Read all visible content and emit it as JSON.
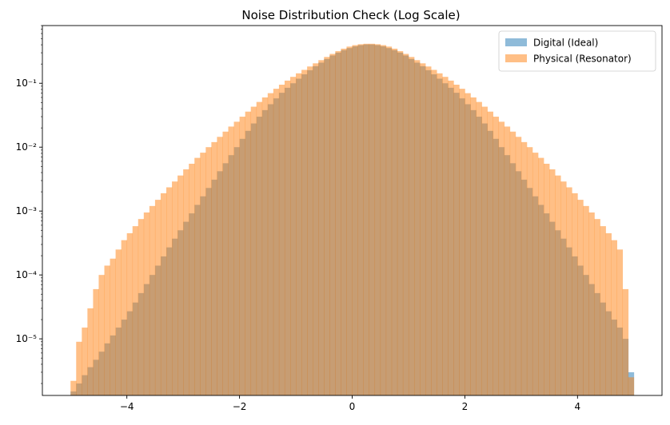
{
  "chart_data": {
    "type": "histogram",
    "title": "Noise Distribution Check (Log Scale)",
    "xlabel": "",
    "ylabel": "",
    "y_scale": "log",
    "xlim": [
      -5.5,
      5.5
    ],
    "ylim": [
      1.3e-06,
      0.8
    ],
    "x_ticks": [
      -4,
      -2,
      0,
      2,
      4
    ],
    "x_tick_labels": [
      "−4",
      "−2",
      "0",
      "2",
      "4"
    ],
    "y_ticks": [
      1e-05,
      0.0001,
      0.001,
      0.01,
      0.1
    ],
    "y_tick_labels": [
      "10⁻⁵",
      "10⁻⁴",
      "10⁻³",
      "10⁻²",
      "10⁻¹"
    ],
    "bins": {
      "start": -5,
      "end": 5,
      "count": 100
    },
    "grid": false,
    "legend_position": "top-right",
    "series": [
      {
        "name": "Digital (Ideal)",
        "color": "#1f77b4",
        "opacity": 0.5,
        "values": [
          1.5e-06,
          2e-06,
          2.7e-06,
          3.6e-06,
          4.7e-06,
          6.3e-06,
          8.5e-06,
          1.13e-05,
          1.5e-05,
          2e-05,
          2.7e-05,
          3.7e-05,
          5.2e-05,
          7.2e-05,
          0.0001,
          0.00014,
          0.000195,
          0.00027,
          0.00037,
          0.0005,
          0.00068,
          0.00092,
          0.00125,
          0.0017,
          0.0023,
          0.0031,
          0.0042,
          0.0056,
          0.0075,
          0.01,
          0.0135,
          0.018,
          0.0235,
          0.03,
          0.038,
          0.047,
          0.058,
          0.071,
          0.085,
          0.1,
          0.118,
          0.138,
          0.16,
          0.185,
          0.21,
          0.24,
          0.272,
          0.302,
          0.33,
          0.355,
          0.378,
          0.395,
          0.405,
          0.405,
          0.395,
          0.378,
          0.355,
          0.33,
          0.302,
          0.272,
          0.24,
          0.21,
          0.185,
          0.16,
          0.138,
          0.118,
          0.1,
          0.085,
          0.071,
          0.058,
          0.047,
          0.038,
          0.03,
          0.0235,
          0.018,
          0.0135,
          0.01,
          0.0075,
          0.0056,
          0.0042,
          0.0031,
          0.0023,
          0.0017,
          0.00125,
          0.00092,
          0.00068,
          0.0005,
          0.00037,
          0.00027,
          0.000195,
          0.00014,
          0.0001,
          7.2e-05,
          5.2e-05,
          3.7e-05,
          2.7e-05,
          2e-05,
          1.5e-05,
          1e-05,
          3e-06
        ]
      },
      {
        "name": "Physical (Resonator)",
        "color": "#ff7f0e",
        "opacity": 0.5,
        "values": [
          2.2e-06,
          9e-06,
          1.5e-05,
          3e-05,
          6e-05,
          0.0001,
          0.00014,
          0.00018,
          0.00025,
          0.00035,
          0.00045,
          0.00058,
          0.00075,
          0.00095,
          0.0012,
          0.0015,
          0.0019,
          0.00235,
          0.0029,
          0.0036,
          0.0045,
          0.0055,
          0.0068,
          0.0082,
          0.01,
          0.012,
          0.0145,
          0.0175,
          0.021,
          0.025,
          0.03,
          0.036,
          0.043,
          0.051,
          0.06,
          0.07,
          0.082,
          0.095,
          0.11,
          0.126,
          0.143,
          0.162,
          0.183,
          0.205,
          0.23,
          0.258,
          0.288,
          0.318,
          0.348,
          0.375,
          0.395,
          0.408,
          0.415,
          0.415,
          0.408,
          0.395,
          0.375,
          0.348,
          0.318,
          0.288,
          0.258,
          0.23,
          0.205,
          0.183,
          0.162,
          0.143,
          0.126,
          0.11,
          0.095,
          0.082,
          0.07,
          0.06,
          0.051,
          0.043,
          0.036,
          0.03,
          0.025,
          0.021,
          0.0175,
          0.0145,
          0.012,
          0.01,
          0.0082,
          0.0068,
          0.0055,
          0.0045,
          0.0036,
          0.0029,
          0.00235,
          0.0019,
          0.0015,
          0.0012,
          0.00095,
          0.00075,
          0.00058,
          0.00045,
          0.00035,
          0.00025,
          6e-05,
          2.5e-06
        ]
      }
    ]
  }
}
